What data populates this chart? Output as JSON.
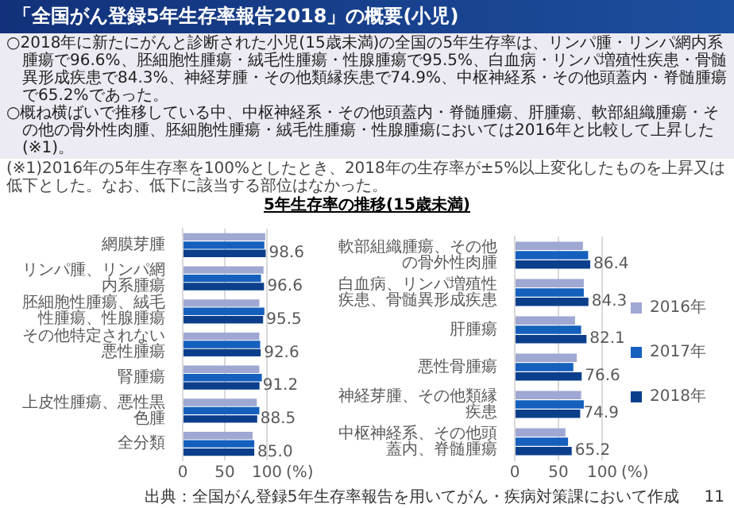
{
  "chart_data": [
    {
      "type": "bar",
      "orientation": "horizontal",
      "title": "「全国がん登録5年生存率報告2018」の概要(小児)",
      "subtitle": "5年生存率の推移(15歳未満)",
      "annotations": [
        "○2018年に新たにがんと診断された小児(15歳未満)の全国の5年生存率は、リンパ腫・リンパ網内系腫瘍で96.6%、胚細胞性腫瘍・絨毛性腫瘍・性腺腫瘍で95.5%、白血病・リンパ増殖性疾患・骨髄異形成疾患で84.3%、神経芽腫・その他類縁疾患で74.9%、中枢神経系・その他頭蓋内・脊髄腫瘍で65.2%であった。",
        "○概ね横ばいで推移している中、中枢神経系・その他頭蓋内・脊髄腫瘍、肝腫瘍、軟部組織腫瘍・その他の骨外性肉腫、胚細胞性腫瘍・絨毛性腫瘍・性腺腫瘍においては2016年と比較して上昇した(※1)。",
        "(※1)2016年の5年生存率を100%としたとき、2018年の生存率が±5%以上変化したものを上昇又は低下とした。なお、低下に該当する部位はなかった。"
      ],
      "categories": [
        "網膜芽腫",
        "リンパ腫、リンパ網内系腫瘍",
        "胚細胞性腫瘍、絨毛性腫瘍、性腺腫瘍",
        "その他特定されない悪性腫瘍",
        "腎腫瘍",
        "上皮性腫瘍、悪性黒色腫",
        "全分類"
      ],
      "series": [
        {
          "color": "#9fa8d2",
          "values": [
            98,
            96,
            91,
            91,
            91,
            88,
            83
          ]
        },
        {
          "color": "#1560bd",
          "values": [
            97,
            93,
            97,
            92,
            94,
            91,
            85
          ]
        },
        {
          "color": "#0b3f8c",
          "values": [
            98.6,
            96.6,
            95.5,
            92.6,
            91.2,
            88.5,
            85.0
          ],
          "value_labels": [
            "98.6",
            "96.6",
            "95.5",
            "92.6",
            "91.2",
            "88.5",
            "85.0"
          ]
        }
      ],
      "xlabel": "(%)",
      "xlim": [
        0,
        100
      ],
      "xticks": [
        0,
        50,
        100
      ],
      "grid": "x",
      "legend": false
    },
    {
      "type": "bar",
      "orientation": "horizontal",
      "annotations": [
        "出典：全国がん登録5年生存率報告を用いてがん・疾病対策課において作成",
        "11"
      ],
      "categories": [
        "軟部組織腫瘍、その他の骨外性肉腫",
        "白血病、リンパ増殖性疾患、骨髄異形成疾患",
        "肝腫瘍",
        "悪性骨腫瘍",
        "神経芽腫、その他類縁疾患",
        "中枢神経系、その他頭蓋内、脊髄腫瘍"
      ],
      "series": [
        {
          "name": "2016年",
          "color": "#9fa8d2",
          "values": [
            78,
            79,
            69,
            71,
            76,
            58
          ]
        },
        {
          "name": "2017年",
          "color": "#1560bd",
          "values": [
            84,
            79,
            76,
            67,
            79,
            61
          ]
        },
        {
          "name": "2018年",
          "color": "#0b3f8c",
          "values": [
            86.4,
            84.3,
            82.1,
            76.6,
            74.9,
            65.2
          ],
          "value_labels": [
            "86.4",
            "84.3",
            "82.1",
            "76.6",
            "74.9",
            "65.2"
          ]
        }
      ],
      "xlabel": "(%)",
      "xlim": [
        0,
        100
      ],
      "xticks": [
        0,
        50,
        100
      ],
      "grid": "x",
      "legend": "right"
    }
  ]
}
